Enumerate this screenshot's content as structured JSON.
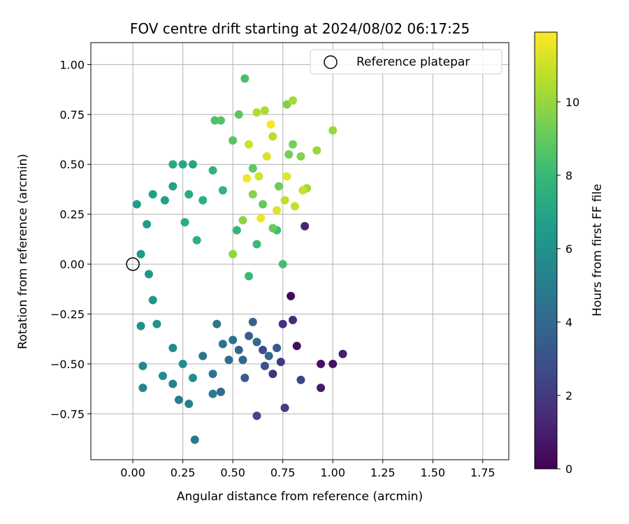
{
  "chart_data": {
    "type": "scatter",
    "title": "FOV centre drift starting at 2024/08/02 06:17:25",
    "xlabel": "Angular distance from reference (arcmin)",
    "ylabel": "Rotation from reference (arcmin)",
    "xlim": [
      -0.21,
      1.88
    ],
    "ylim": [
      -0.98,
      1.11
    ],
    "xticks": [
      0.0,
      0.25,
      0.5,
      0.75,
      1.0,
      1.25,
      1.5,
      1.75
    ],
    "xtick_labels": [
      "0.00",
      "0.25",
      "0.50",
      "0.75",
      "1.00",
      "1.25",
      "1.50",
      "1.75"
    ],
    "yticks": [
      -0.75,
      -0.5,
      -0.25,
      0.0,
      0.25,
      0.5,
      0.75,
      1.0
    ],
    "ytick_labels": [
      "−0.75",
      "−0.50",
      "−0.25",
      "0.00",
      "0.25",
      "0.50",
      "0.75",
      "1.00"
    ],
    "grid": true,
    "legend": {
      "placement": "top-right",
      "entries": [
        {
          "label": "Reference platepar",
          "marker": "open-circle"
        }
      ]
    },
    "reference_point": {
      "x": 0.0,
      "y": 0.0
    },
    "colorbar": {
      "label": "Hours from first FF file",
      "colormap": "viridis",
      "range": [
        0,
        11.9
      ],
      "ticks": [
        0,
        2,
        4,
        6,
        8,
        10
      ],
      "tick_labels": [
        "0",
        "2",
        "4",
        "6",
        "8",
        "10"
      ]
    },
    "colormap_stops": [
      "#440154",
      "#482878",
      "#3e4a89",
      "#31688e",
      "#26828e",
      "#1f9e89",
      "#35b779",
      "#6ece58",
      "#b5de2b",
      "#fde725"
    ],
    "points": [
      [
        0.79,
        -0.16,
        0.2
      ],
      [
        0.82,
        -0.41,
        0.4
      ],
      [
        0.94,
        -0.5,
        0.5
      ],
      [
        1.0,
        -0.5,
        0.6
      ],
      [
        0.94,
        -0.62,
        0.8
      ],
      [
        1.05,
        -0.45,
        1.0
      ],
      [
        0.86,
        0.19,
        1.2
      ],
      [
        0.8,
        -0.28,
        1.4
      ],
      [
        0.75,
        -0.3,
        1.6
      ],
      [
        0.7,
        -0.55,
        1.8
      ],
      [
        0.74,
        -0.49,
        2.0
      ],
      [
        0.76,
        -0.72,
        2.2
      ],
      [
        0.84,
        -0.58,
        2.4
      ],
      [
        0.62,
        -0.76,
        2.6
      ],
      [
        0.65,
        -0.43,
        2.8
      ],
      [
        0.66,
        -0.51,
        3.0
      ],
      [
        0.72,
        -0.42,
        3.2
      ],
      [
        0.56,
        -0.57,
        3.4
      ],
      [
        0.58,
        -0.36,
        3.6
      ],
      [
        0.6,
        -0.29,
        3.7
      ],
      [
        0.53,
        -0.43,
        3.8
      ],
      [
        0.55,
        -0.48,
        3.9
      ],
      [
        0.62,
        -0.39,
        4.0
      ],
      [
        0.68,
        -0.46,
        4.1
      ],
      [
        0.44,
        -0.64,
        4.2
      ],
      [
        0.48,
        -0.48,
        4.3
      ],
      [
        0.5,
        -0.38,
        4.4
      ],
      [
        0.45,
        -0.4,
        4.5
      ],
      [
        0.4,
        -0.55,
        4.6
      ],
      [
        0.35,
        -0.46,
        4.7
      ],
      [
        0.42,
        -0.3,
        4.8
      ],
      [
        0.31,
        -0.88,
        4.9
      ],
      [
        0.4,
        -0.65,
        5.0
      ],
      [
        0.23,
        -0.68,
        5.1
      ],
      [
        0.28,
        -0.7,
        5.2
      ],
      [
        0.2,
        -0.6,
        5.3
      ],
      [
        0.05,
        -0.62,
        5.4
      ],
      [
        0.05,
        -0.51,
        5.5
      ],
      [
        0.2,
        -0.42,
        5.6
      ],
      [
        0.15,
        -0.56,
        5.7
      ],
      [
        0.25,
        -0.5,
        5.8
      ],
      [
        0.3,
        -0.57,
        5.9
      ],
      [
        0.04,
        -0.31,
        6.0
      ],
      [
        0.12,
        -0.3,
        6.1
      ],
      [
        0.1,
        -0.18,
        6.2
      ],
      [
        0.08,
        -0.05,
        6.3
      ],
      [
        0.04,
        0.05,
        6.4
      ],
      [
        0.07,
        0.2,
        6.5
      ],
      [
        0.02,
        0.3,
        6.6
      ],
      [
        0.1,
        0.35,
        6.7
      ],
      [
        0.16,
        0.32,
        6.8
      ],
      [
        0.2,
        0.39,
        6.9
      ],
      [
        0.3,
        0.5,
        7.0
      ],
      [
        0.25,
        0.5,
        7.1
      ],
      [
        0.2,
        0.5,
        7.2
      ],
      [
        0.28,
        0.35,
        7.3
      ],
      [
        0.26,
        0.21,
        7.4
      ],
      [
        0.32,
        0.12,
        7.5
      ],
      [
        0.35,
        0.32,
        7.6
      ],
      [
        0.4,
        0.47,
        7.7
      ],
      [
        0.45,
        0.37,
        7.8
      ],
      [
        0.52,
        0.17,
        7.9
      ],
      [
        0.58,
        -0.06,
        8.0
      ],
      [
        0.62,
        0.1,
        8.1
      ],
      [
        0.72,
        0.17,
        8.2
      ],
      [
        0.75,
        0.0,
        8.3
      ],
      [
        0.56,
        0.93,
        8.4
      ],
      [
        0.41,
        0.72,
        8.5
      ],
      [
        0.44,
        0.72,
        8.6
      ],
      [
        0.5,
        0.62,
        8.7
      ],
      [
        0.53,
        0.75,
        8.8
      ],
      [
        0.6,
        0.48,
        8.9
      ],
      [
        0.65,
        0.3,
        9.0
      ],
      [
        0.7,
        0.18,
        9.1
      ],
      [
        0.73,
        0.39,
        9.2
      ],
      [
        0.78,
        0.55,
        9.3
      ],
      [
        0.8,
        0.6,
        9.4
      ],
      [
        0.77,
        0.8,
        9.5
      ],
      [
        0.84,
        0.54,
        9.6
      ],
      [
        0.6,
        0.35,
        9.7
      ],
      [
        0.55,
        0.22,
        9.8
      ],
      [
        0.5,
        0.05,
        9.9
      ],
      [
        1.0,
        0.67,
        10.0
      ],
      [
        0.92,
        0.57,
        10.1
      ],
      [
        0.87,
        0.38,
        10.2
      ],
      [
        0.8,
        0.82,
        10.3
      ],
      [
        0.66,
        0.77,
        10.4
      ],
      [
        0.62,
        0.76,
        10.5
      ],
      [
        0.7,
        0.64,
        10.6
      ],
      [
        0.76,
        0.32,
        10.7
      ],
      [
        0.81,
        0.29,
        10.8
      ],
      [
        0.85,
        0.37,
        10.9
      ],
      [
        0.58,
        0.6,
        11.0
      ],
      [
        0.63,
        0.44,
        11.1
      ],
      [
        0.67,
        0.54,
        11.2
      ],
      [
        0.72,
        0.27,
        11.3
      ],
      [
        0.77,
        0.44,
        11.4
      ],
      [
        0.64,
        0.23,
        11.6
      ],
      [
        0.57,
        0.43,
        11.7
      ],
      [
        0.69,
        0.7,
        11.8
      ]
    ]
  }
}
